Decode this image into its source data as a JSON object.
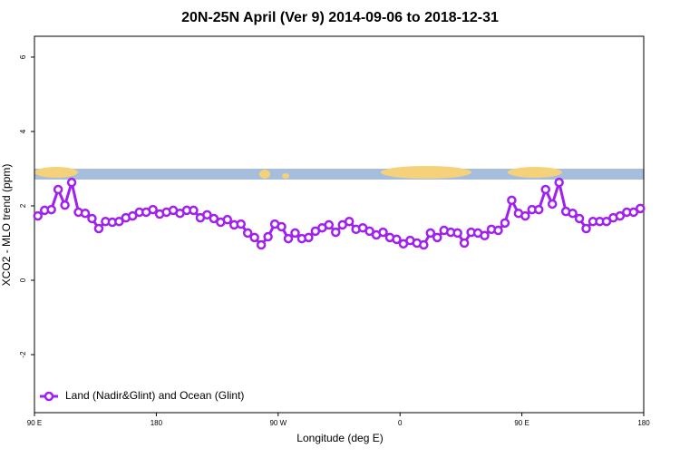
{
  "chart_data": {
    "type": "line",
    "title": "20N-25N April (Ver 9)   2014-09-06 to 2018-12-31",
    "xlabel": "Longitude (deg E)",
    "ylabel": "XCO2 - MLO trend (ppm)",
    "x": [
      92.5,
      97.5,
      102.5,
      107.5,
      112.5,
      117.5,
      122.5,
      127.5,
      132.5,
      137.5,
      142.5,
      147.5,
      152.5,
      157.5,
      162.5,
      167.5,
      172.5,
      177.5,
      182.5,
      187.5,
      192.5,
      197.5,
      202.5,
      207.5,
      212.5,
      217.5,
      222.5,
      227.5,
      232.5,
      237.5,
      242.5,
      247.5,
      252.5,
      257.5,
      262.5,
      267.5,
      272.5,
      277.5,
      282.5,
      287.5,
      292.5,
      297.5,
      302.5,
      307.5,
      312.5,
      317.5,
      322.5,
      327.5,
      332.5,
      337.5,
      342.5,
      347.5,
      352.5,
      357.5,
      362.5,
      367.5,
      372.5,
      377.5,
      382.5,
      387.5,
      392.5,
      397.5,
      402.5,
      407.5,
      412.5,
      417.5,
      422.5,
      427.5,
      432.5,
      437.5,
      442.5,
      447.5,
      452.5,
      457.5,
      462.5,
      467.5,
      472.5,
      477.5,
      482.5,
      487.5,
      492.5,
      497.5,
      502.5,
      507.5,
      512.5,
      517.5,
      522.5,
      527.5,
      532.5,
      537.5
    ],
    "series": [
      {
        "name": "Land (Nadir&Glint) and Ocean (Glint)",
        "color": "#a020f0",
        "values": [
          1.73,
          1.88,
          1.9,
          2.44,
          2.02,
          2.63,
          1.83,
          1.8,
          1.66,
          1.39,
          1.58,
          1.56,
          1.58,
          1.68,
          1.73,
          1.83,
          1.83,
          1.9,
          1.78,
          1.83,
          1.88,
          1.8,
          1.88,
          1.88,
          1.68,
          1.76,
          1.66,
          1.56,
          1.63,
          1.49,
          1.51,
          1.27,
          1.15,
          0.95,
          1.17,
          1.51,
          1.44,
          1.12,
          1.27,
          1.12,
          1.15,
          1.32,
          1.41,
          1.49,
          1.29,
          1.49,
          1.58,
          1.37,
          1.41,
          1.32,
          1.22,
          1.29,
          1.15,
          1.1,
          0.98,
          1.07,
          1.0,
          0.95,
          1.27,
          1.15,
          1.34,
          1.29,
          1.27,
          1.0,
          1.29,
          1.27,
          1.2,
          1.37,
          1.34,
          1.54,
          2.15,
          1.8,
          1.73,
          1.9,
          1.9,
          2.44,
          2.05,
          2.63,
          1.85,
          1.8,
          1.66,
          1.39,
          1.58,
          1.58,
          1.58,
          1.68,
          1.73,
          1.83,
          1.83,
          1.93
        ]
      }
    ],
    "xlim": [
      90,
      540
    ],
    "xticks": [
      {
        "value": 90,
        "label": "90 E"
      },
      180,
      {
        "value": 270,
        "label": "90 W"
      },
      {
        "value": 360,
        "label": "0"
      },
      {
        "value": 450,
        "label": "90 E"
      },
      {
        "value": 540,
        "label": "180"
      }
    ],
    "ylim": [
      -3.56,
      6.56
    ],
    "yticks": [
      -2,
      0,
      2,
      4,
      6
    ],
    "legend": "bottom-left"
  }
}
